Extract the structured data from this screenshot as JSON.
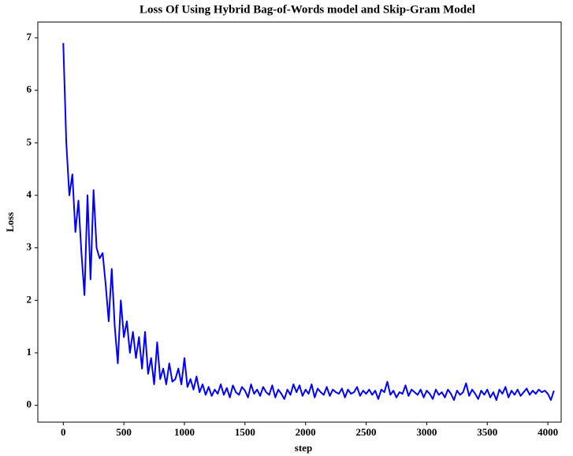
{
  "chart_data": {
    "type": "line",
    "title": "Loss Of Using Hybrid Bag-of-Words model and Skip-Gram Model",
    "x_label": "step",
    "y_label": "Loss",
    "x": [
      0,
      25,
      50,
      75,
      100,
      125,
      150,
      175,
      200,
      225,
      250,
      275,
      300,
      325,
      350,
      375,
      400,
      425,
      450,
      475,
      500,
      525,
      550,
      575,
      600,
      625,
      650,
      675,
      700,
      725,
      750,
      775,
      800,
      825,
      850,
      875,
      900,
      925,
      950,
      975,
      1000,
      1025,
      1050,
      1075,
      1100,
      1125,
      1150,
      1175,
      1200,
      1225,
      1250,
      1275,
      1300,
      1325,
      1350,
      1375,
      1400,
      1425,
      1450,
      1475,
      1500,
      1525,
      1550,
      1575,
      1600,
      1625,
      1650,
      1675,
      1700,
      1725,
      1750,
      1775,
      1800,
      1825,
      1850,
      1875,
      1900,
      1925,
      1950,
      1975,
      2000,
      2025,
      2050,
      2075,
      2100,
      2125,
      2150,
      2175,
      2200,
      2225,
      2250,
      2275,
      2300,
      2325,
      2350,
      2375,
      2400,
      2425,
      2450,
      2475,
      2500,
      2525,
      2550,
      2575,
      2600,
      2625,
      2650,
      2675,
      2700,
      2725,
      2750,
      2775,
      2800,
      2825,
      2850,
      2875,
      2900,
      2925,
      2950,
      2975,
      3000,
      3025,
      3050,
      3075,
      3100,
      3125,
      3150,
      3175,
      3200,
      3225,
      3250,
      3275,
      3300,
      3325,
      3350,
      3375,
      3400,
      3425,
      3450,
      3475,
      3500,
      3525,
      3550,
      3575,
      3600,
      3625,
      3650,
      3675,
      3700,
      3725,
      3750,
      3775,
      3800,
      3825,
      3850,
      3875,
      3900,
      3925,
      3950,
      3975,
      4000,
      4025,
      4050
    ],
    "series": [
      {
        "name": "loss",
        "color": "#0000ff",
        "values": [
          6.9,
          5.0,
          4.0,
          4.4,
          3.3,
          3.9,
          2.9,
          2.1,
          4.0,
          2.4,
          4.1,
          3.0,
          2.8,
          2.9,
          2.3,
          1.6,
          2.6,
          1.5,
          0.8,
          2.0,
          1.3,
          1.6,
          1.0,
          1.4,
          0.9,
          1.3,
          0.7,
          1.4,
          0.6,
          0.9,
          0.4,
          1.2,
          0.5,
          0.7,
          0.4,
          0.8,
          0.45,
          0.5,
          0.7,
          0.4,
          0.9,
          0.35,
          0.5,
          0.3,
          0.55,
          0.25,
          0.4,
          0.2,
          0.35,
          0.18,
          0.3,
          0.22,
          0.4,
          0.2,
          0.33,
          0.15,
          0.38,
          0.25,
          0.2,
          0.35,
          0.28,
          0.15,
          0.4,
          0.22,
          0.3,
          0.18,
          0.35,
          0.25,
          0.2,
          0.38,
          0.15,
          0.3,
          0.22,
          0.12,
          0.3,
          0.2,
          0.4,
          0.25,
          0.38,
          0.18,
          0.3,
          0.22,
          0.4,
          0.15,
          0.32,
          0.25,
          0.2,
          0.35,
          0.18,
          0.3,
          0.25,
          0.22,
          0.32,
          0.15,
          0.3,
          0.22,
          0.25,
          0.35,
          0.18,
          0.28,
          0.22,
          0.3,
          0.2,
          0.28,
          0.12,
          0.3,
          0.25,
          0.45,
          0.2,
          0.28,
          0.15,
          0.25,
          0.22,
          0.38,
          0.18,
          0.3,
          0.25,
          0.2,
          0.3,
          0.15,
          0.28,
          0.22,
          0.12,
          0.3,
          0.2,
          0.25,
          0.15,
          0.3,
          0.22,
          0.1,
          0.28,
          0.2,
          0.25,
          0.42,
          0.18,
          0.3,
          0.22,
          0.12,
          0.28,
          0.2,
          0.3,
          0.15,
          0.25,
          0.1,
          0.3,
          0.22,
          0.35,
          0.15,
          0.28,
          0.2,
          0.3,
          0.18,
          0.25,
          0.32,
          0.2,
          0.28,
          0.22,
          0.3,
          0.25,
          0.28,
          0.22,
          0.1,
          0.28
        ]
      }
    ],
    "xlim": [
      -210,
      4110
    ],
    "ylim": [
      -0.32,
      7.3
    ],
    "xticks": [
      0,
      500,
      1000,
      1500,
      2000,
      2500,
      3000,
      3500,
      4000
    ],
    "yticks": [
      0,
      1,
      2,
      3,
      4,
      5,
      6,
      7
    ]
  }
}
